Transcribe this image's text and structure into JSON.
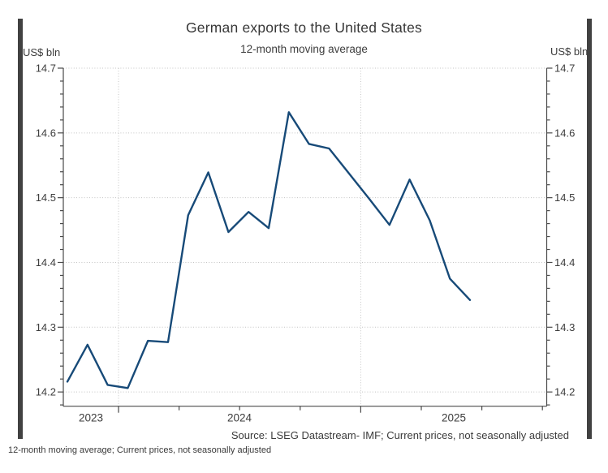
{
  "page": {
    "footer_caption": "12-month moving average; Current prices, not seasonally adjusted"
  },
  "chart": {
    "title": "German exports to the United States",
    "subtitle": "12-month moving average",
    "y_unit_left": "US$ bln",
    "y_unit_right": "US$ bln",
    "source": "Source: LSEG Datastream- IMF; Current prices, not seasonally adjusted"
  },
  "chart_data": {
    "type": "line",
    "title": "German exports to the United States",
    "subtitle": "12-month moving average",
    "xlabel": "",
    "ylabel": "US$ bln",
    "ylim": [
      14.178,
      14.7
    ],
    "grid": "dotted",
    "legend_position": "none",
    "x": [
      "Oct 2023",
      "Nov 2023",
      "Dec 2023",
      "Jan 2024",
      "Feb 2024",
      "Mar 2024",
      "Apr 2024",
      "May 2024",
      "Jun 2024",
      "Jul 2024",
      "Aug 2024",
      "Sep 2024",
      "Oct 2024",
      "Nov 2024",
      "Dec 2024",
      "Jan 2025",
      "Feb 2025",
      "Mar 2025",
      "Apr 2025",
      "May 2025",
      "Jun 2025"
    ],
    "series": [
      {
        "name": "German exports to the United States, 12-month moving average (US$ bln)",
        "color": "#174a78",
        "values": [
          14.216,
          14.273,
          14.211,
          14.206,
          14.279,
          14.277,
          14.473,
          14.539,
          14.447,
          14.478,
          14.453,
          14.632,
          14.583,
          14.576,
          14.537,
          14.498,
          14.458,
          14.528,
          14.465,
          14.375,
          14.342
        ]
      }
    ],
    "x_tick_year_labels": [
      "2023",
      "2024",
      "2025"
    ],
    "y_ticks": [
      14.2,
      14.3,
      14.4,
      14.5,
      14.6,
      14.7
    ],
    "y_minor_step": 0.02
  },
  "colors": {
    "line": "#174a78",
    "grid": "#c4c4c4",
    "axis": "#4a4a4a",
    "tick_text": "#3d3d3d",
    "side_bar": "#414141"
  }
}
